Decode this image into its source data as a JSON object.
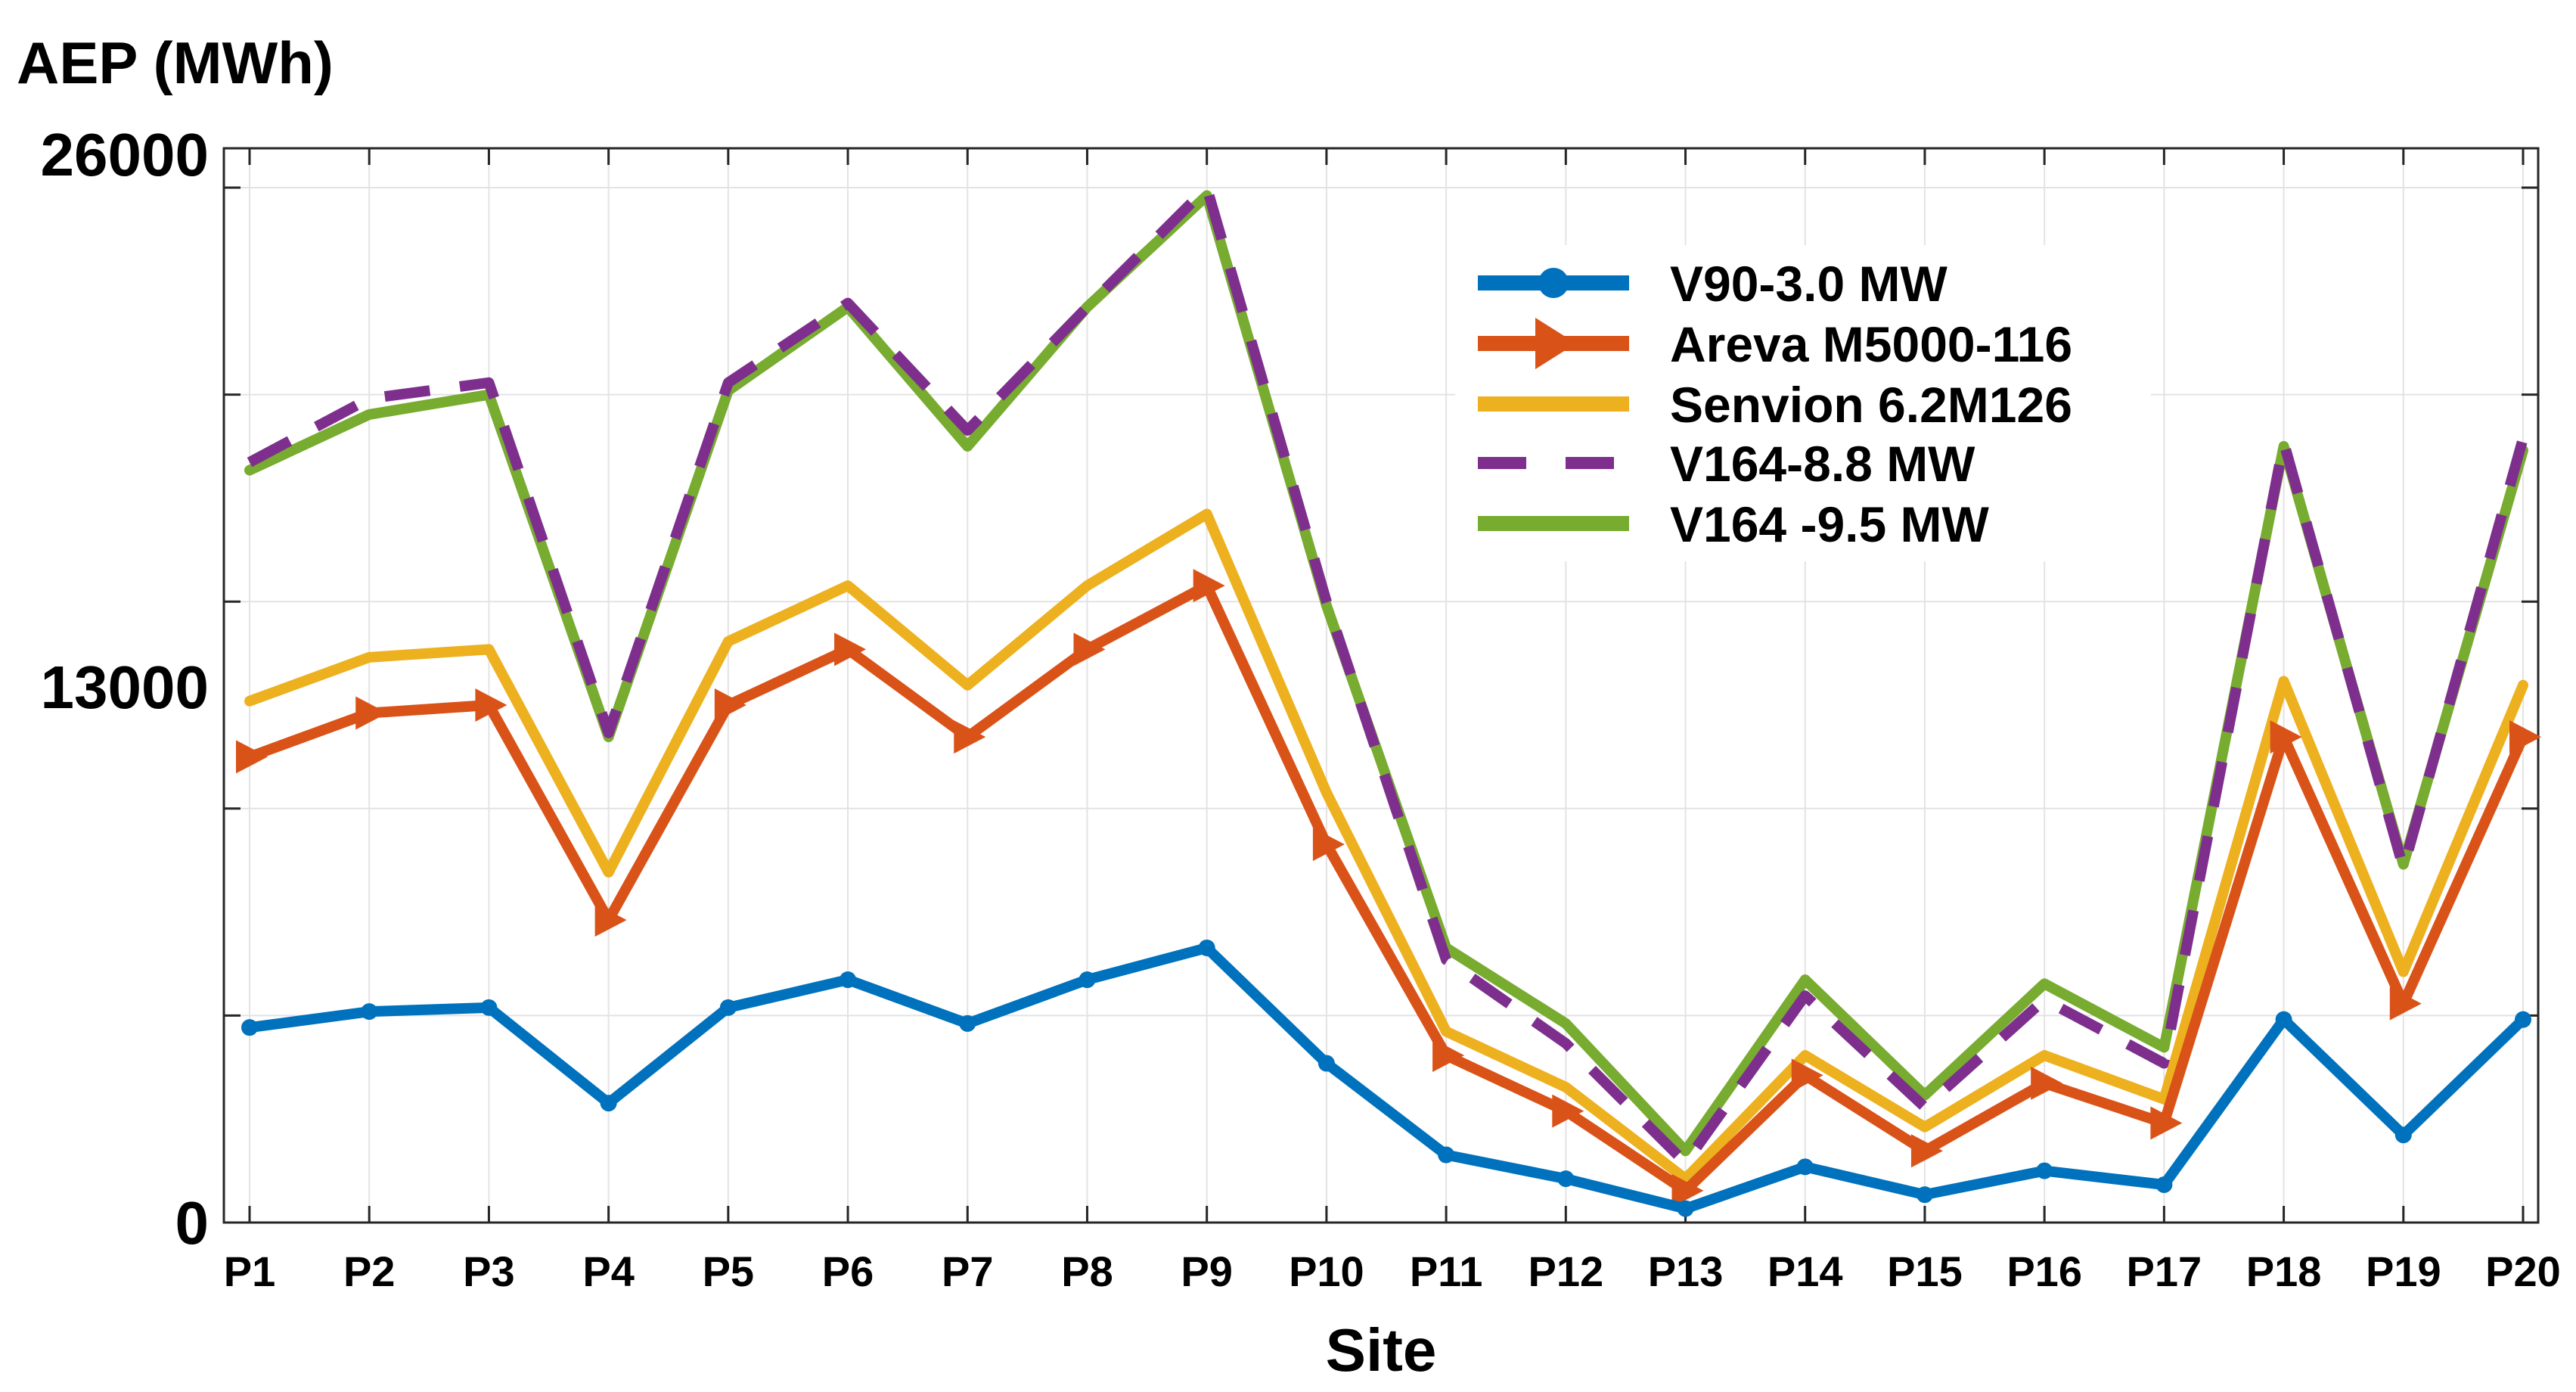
{
  "chart_data": {
    "type": "line",
    "ylabel": "AEP (MWh)",
    "xlabel": "Site",
    "categories": [
      "P1",
      "P2",
      "P3",
      "P4",
      "P5",
      "P6",
      "P7",
      "P8",
      "P9",
      "P10",
      "P11",
      "P12",
      "P13",
      "P14",
      "P15",
      "P16",
      "P17",
      "P18",
      "P19",
      "P20"
    ],
    "ylim": [
      0,
      26000
    ],
    "yticks": [
      0,
      13000,
      26000
    ],
    "grid": true,
    "legend_position": "top-right",
    "series": [
      {
        "name": "V90-3.0 MW",
        "color": "#0072BD",
        "style": "solid",
        "marker": "circle",
        "values": [
          4900,
          5300,
          5400,
          3000,
          5400,
          6100,
          5000,
          6100,
          6900,
          4000,
          1700,
          1100,
          350,
          1400,
          700,
          1300,
          950,
          5100,
          2200,
          5100
        ]
      },
      {
        "name": "Areva M5000-116",
        "color": "#D95319",
        "style": "solid",
        "marker": "triangle-right",
        "values": [
          11700,
          12800,
          13000,
          7600,
          13000,
          14400,
          12200,
          14400,
          16000,
          9500,
          4200,
          2800,
          800,
          3700,
          1800,
          3500,
          2500,
          12200,
          5500,
          12200
        ]
      },
      {
        "name": "Senvion 6.2M126",
        "color": "#EDB120",
        "style": "solid",
        "marker": "none",
        "values": [
          13100,
          14200,
          14400,
          8800,
          14600,
          16000,
          13500,
          16000,
          17800,
          10800,
          4800,
          3400,
          1100,
          4200,
          2400,
          4200,
          3100,
          13600,
          6300,
          13500
        ]
      },
      {
        "name": "V164-8.8 MW",
        "color": "#7E2F8E",
        "style": "dashed",
        "marker": "none",
        "values": [
          19100,
          20700,
          21100,
          12300,
          21100,
          23100,
          19900,
          23000,
          26000,
          15600,
          6600,
          4500,
          1500,
          5700,
          2900,
          5600,
          4000,
          19600,
          8900,
          19700
        ]
      },
      {
        "name": "V164 -9.5 MW",
        "color": "#77AC30",
        "style": "solid",
        "marker": "none",
        "values": [
          18900,
          20300,
          20800,
          12200,
          20900,
          23000,
          19500,
          23000,
          25800,
          15500,
          6900,
          5000,
          1800,
          6100,
          3200,
          6000,
          4400,
          19500,
          9000,
          19400
        ]
      }
    ]
  }
}
